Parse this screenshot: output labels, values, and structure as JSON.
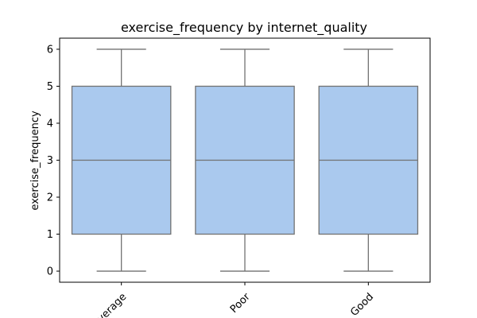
{
  "chart_data": {
    "type": "box",
    "title": "exercise_frequency by internet_quality",
    "xlabel": "",
    "ylabel": "exercise_frequency",
    "categories": [
      "Average",
      "Poor",
      "Good"
    ],
    "boxes": [
      {
        "category": "Average",
        "min": 0,
        "q1": 1,
        "median": 3,
        "q3": 5,
        "max": 6
      },
      {
        "category": "Poor",
        "min": 0,
        "q1": 1,
        "median": 3,
        "q3": 5,
        "max": 6
      },
      {
        "category": "Good",
        "min": 0,
        "q1": 1,
        "median": 3,
        "q3": 5,
        "max": 6
      }
    ],
    "yticks": [
      0,
      1,
      2,
      3,
      4,
      5,
      6
    ],
    "ylim": [
      -0.3,
      6.3
    ],
    "grid": false,
    "colors": {
      "box_fill": "#aac9ee",
      "line": "#727272",
      "axis": "#000000"
    }
  }
}
